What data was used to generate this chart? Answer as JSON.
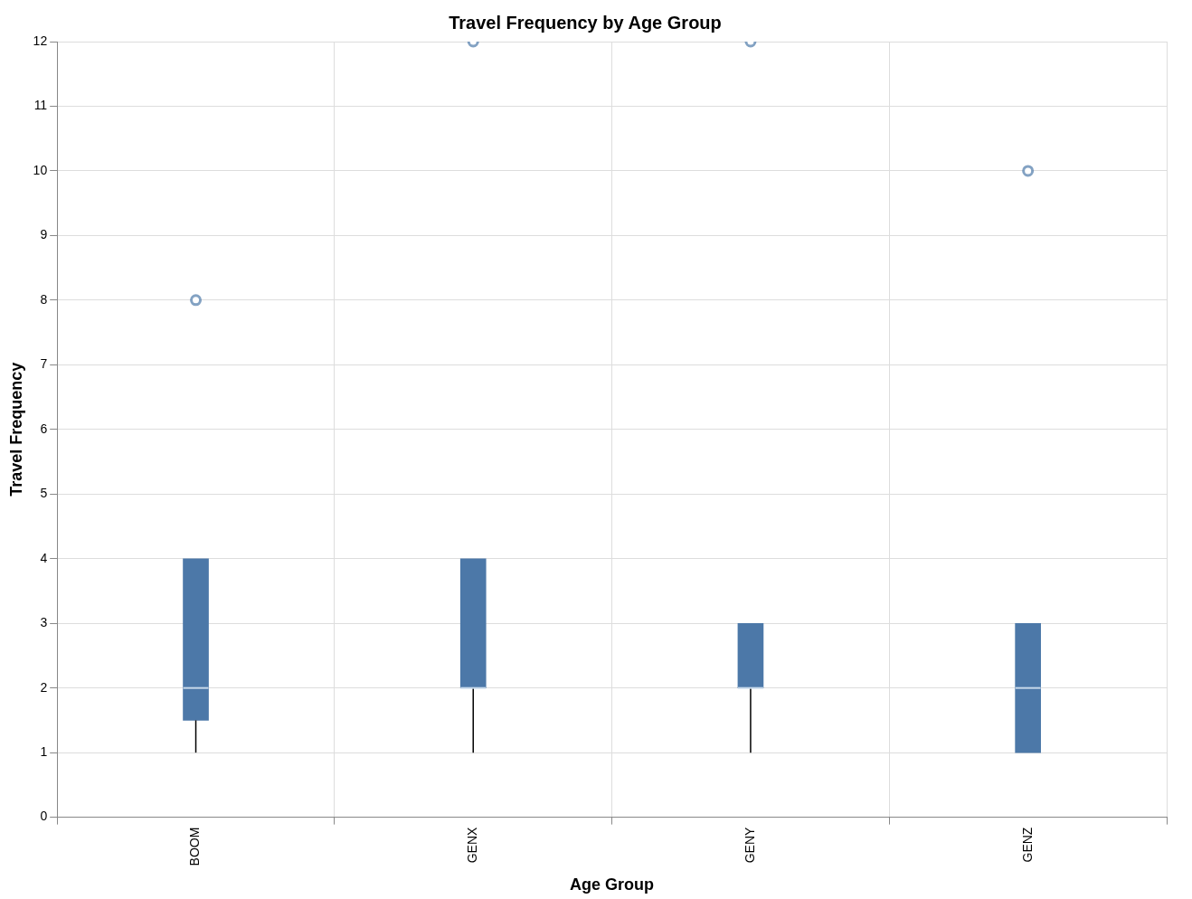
{
  "chart_data": {
    "type": "box",
    "title": "Travel Frequency by Age Group",
    "xlabel": "Age Group",
    "ylabel": "Travel Frequency",
    "categories": [
      "BOOM",
      "GENX",
      "GENY",
      "GENZ"
    ],
    "color": "#4c78a8",
    "boxes": [
      {
        "low": 1,
        "q1": 1.5,
        "median": 2,
        "q3": 4,
        "high": 4,
        "outliers": [
          8
        ]
      },
      {
        "low": 1,
        "q1": 2,
        "median": 2,
        "q3": 4,
        "high": 4,
        "outliers": [
          12
        ]
      },
      {
        "low": 1,
        "q1": 2,
        "median": 2,
        "q3": 3,
        "high": 3,
        "outliers": [
          12
        ]
      },
      {
        "low": 1,
        "q1": 1,
        "median": 2,
        "q3": 3,
        "high": 3,
        "outliers": [
          10
        ]
      }
    ],
    "ylim": [
      0,
      12
    ],
    "yticks": [
      0,
      1,
      2,
      3,
      4,
      5,
      6,
      7,
      8,
      9,
      10,
      11,
      12
    ],
    "grid": true,
    "legend": false
  }
}
